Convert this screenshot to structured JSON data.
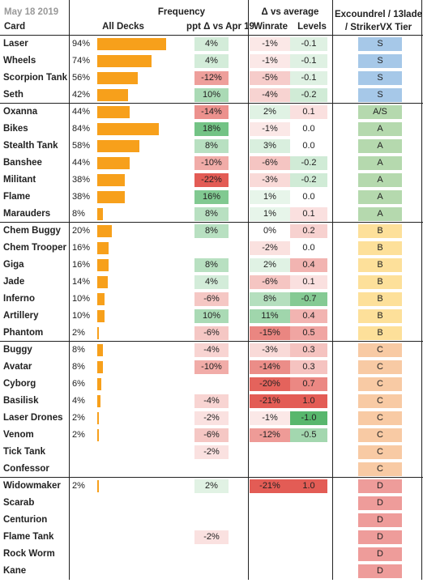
{
  "header": {
    "date": "May 18 2019",
    "frequency": "Frequency",
    "delta_vs_average": "Δ vs average",
    "tier_line1": "Excoundrel / 13lade",
    "tier_line2": "/ StrikerVX Tier",
    "card": "Card",
    "all_decks": "All Decks",
    "ppt_delta": "ppt Δ vs Apr 19",
    "winrate": "Winrate",
    "levels": "Levels"
  },
  "colors": {
    "bar": "#f7a01b",
    "tier_S": "#a6c8e8",
    "tier_AS": "#b5d9ae",
    "tier_A": "#b5d9ae",
    "tier_B": "#fde09a",
    "tier_C": "#f8caa4",
    "tier_D": "#ee9c9a",
    "positive": "#58b76d",
    "negative": "#e35c55"
  },
  "chart_data": {
    "type": "table",
    "columns": [
      "Card",
      "All Decks",
      "ppt Δ vs Apr 19",
      "Winrate",
      "Levels",
      "Excoundrel / 13lade / StrikerVX Tier"
    ],
    "rows": [
      {
        "card": "Laser",
        "freq": 94,
        "freq_label": "94%",
        "ppt": 4,
        "ppt_label": "4%",
        "winrate": -1,
        "winrate_label": "-1%",
        "levels": -0.1,
        "levels_label": "-0.1",
        "tier": "S"
      },
      {
        "card": "Wheels",
        "freq": 74,
        "freq_label": "74%",
        "ppt": 4,
        "ppt_label": "4%",
        "winrate": -1,
        "winrate_label": "-1%",
        "levels": -0.1,
        "levels_label": "-0.1",
        "tier": "S"
      },
      {
        "card": "Scorpion Tank",
        "freq": 56,
        "freq_label": "56%",
        "ppt": -12,
        "ppt_label": "-12%",
        "winrate": -5,
        "winrate_label": "-5%",
        "levels": -0.1,
        "levels_label": "-0.1",
        "tier": "S"
      },
      {
        "card": "Seth",
        "freq": 42,
        "freq_label": "42%",
        "ppt": 10,
        "ppt_label": "10%",
        "winrate": -4,
        "winrate_label": "-4%",
        "levels": -0.2,
        "levels_label": "-0.2",
        "tier": "S"
      },
      {
        "card": "Oxanna",
        "freq": 44,
        "freq_label": "44%",
        "ppt": -14,
        "ppt_label": "-14%",
        "winrate": 2,
        "winrate_label": "2%",
        "levels": 0.1,
        "levels_label": "0.1",
        "tier": "A/S"
      },
      {
        "card": "Bikes",
        "freq": 84,
        "freq_label": "84%",
        "ppt": 18,
        "ppt_label": "18%",
        "winrate": -1,
        "winrate_label": "-1%",
        "levels": 0.0,
        "levels_label": "0.0",
        "tier": "A"
      },
      {
        "card": "Stealth Tank",
        "freq": 58,
        "freq_label": "58%",
        "ppt": 8,
        "ppt_label": "8%",
        "winrate": 3,
        "winrate_label": "3%",
        "levels": 0.0,
        "levels_label": "0.0",
        "tier": "A"
      },
      {
        "card": "Banshee",
        "freq": 44,
        "freq_label": "44%",
        "ppt": -10,
        "ppt_label": "-10%",
        "winrate": -6,
        "winrate_label": "-6%",
        "levels": -0.2,
        "levels_label": "-0.2",
        "tier": "A"
      },
      {
        "card": "Militant",
        "freq": 38,
        "freq_label": "38%",
        "ppt": -22,
        "ppt_label": "-22%",
        "winrate": -3,
        "winrate_label": "-3%",
        "levels": -0.2,
        "levels_label": "-0.2",
        "tier": "A"
      },
      {
        "card": "Flame",
        "freq": 38,
        "freq_label": "38%",
        "ppt": 16,
        "ppt_label": "16%",
        "winrate": 1,
        "winrate_label": "1%",
        "levels": 0.0,
        "levels_label": "0.0",
        "tier": "A"
      },
      {
        "card": "Marauders",
        "freq": 8,
        "freq_label": "8%",
        "ppt": 8,
        "ppt_label": "8%",
        "winrate": 1,
        "winrate_label": "1%",
        "levels": 0.1,
        "levels_label": "0.1",
        "tier": "A"
      },
      {
        "card": "Chem Buggy",
        "freq": 20,
        "freq_label": "20%",
        "ppt": 8,
        "ppt_label": "8%",
        "winrate": 0,
        "winrate_label": "0%",
        "levels": 0.2,
        "levels_label": "0.2",
        "tier": "B"
      },
      {
        "card": "Chem Trooper",
        "freq": 16,
        "freq_label": "16%",
        "ppt": null,
        "ppt_label": "",
        "winrate": -2,
        "winrate_label": "-2%",
        "levels": 0.0,
        "levels_label": "0.0",
        "tier": "B"
      },
      {
        "card": "Giga",
        "freq": 16,
        "freq_label": "16%",
        "ppt": 8,
        "ppt_label": "8%",
        "winrate": 2,
        "winrate_label": "2%",
        "levels": 0.4,
        "levels_label": "0.4",
        "tier": "B"
      },
      {
        "card": "Jade",
        "freq": 14,
        "freq_label": "14%",
        "ppt": 4,
        "ppt_label": "4%",
        "winrate": -6,
        "winrate_label": "-6%",
        "levels": 0.1,
        "levels_label": "0.1",
        "tier": "B"
      },
      {
        "card": "Inferno",
        "freq": 10,
        "freq_label": "10%",
        "ppt": -6,
        "ppt_label": "-6%",
        "winrate": 8,
        "winrate_label": "8%",
        "levels": -0.7,
        "levels_label": "-0.7",
        "tier": "B"
      },
      {
        "card": "Artillery",
        "freq": 10,
        "freq_label": "10%",
        "ppt": 10,
        "ppt_label": "10%",
        "winrate": 11,
        "winrate_label": "11%",
        "levels": 0.4,
        "levels_label": "0.4",
        "tier": "B"
      },
      {
        "card": "Phantom",
        "freq": 2,
        "freq_label": "2%",
        "ppt": -6,
        "ppt_label": "-6%",
        "winrate": -15,
        "winrate_label": "-15%",
        "levels": 0.5,
        "levels_label": "0.5",
        "tier": "B"
      },
      {
        "card": "Buggy",
        "freq": 8,
        "freq_label": "8%",
        "ppt": -4,
        "ppt_label": "-4%",
        "winrate": -3,
        "winrate_label": "-3%",
        "levels": 0.3,
        "levels_label": "0.3",
        "tier": "C"
      },
      {
        "card": "Avatar",
        "freq": 8,
        "freq_label": "8%",
        "ppt": -10,
        "ppt_label": "-10%",
        "winrate": -14,
        "winrate_label": "-14%",
        "levels": 0.3,
        "levels_label": "0.3",
        "tier": "C"
      },
      {
        "card": "Cyborg",
        "freq": 6,
        "freq_label": "6%",
        "ppt": null,
        "ppt_label": "",
        "winrate": -20,
        "winrate_label": "-20%",
        "levels": 0.7,
        "levels_label": "0.7",
        "tier": "C"
      },
      {
        "card": "Basilisk",
        "freq": 4,
        "freq_label": "4%",
        "ppt": -4,
        "ppt_label": "-4%",
        "winrate": -21,
        "winrate_label": "-21%",
        "levels": 1.0,
        "levels_label": "1.0",
        "tier": "C"
      },
      {
        "card": "Laser Drones",
        "freq": 2,
        "freq_label": "2%",
        "ppt": -2,
        "ppt_label": "-2%",
        "winrate": -1,
        "winrate_label": "-1%",
        "levels": -1.0,
        "levels_label": "-1.0",
        "tier": "C"
      },
      {
        "card": "Venom",
        "freq": 2,
        "freq_label": "2%",
        "ppt": -6,
        "ppt_label": "-6%",
        "winrate": -12,
        "winrate_label": "-12%",
        "levels": -0.5,
        "levels_label": "-0.5",
        "tier": "C"
      },
      {
        "card": "Tick Tank",
        "freq": null,
        "freq_label": "",
        "ppt": -2,
        "ppt_label": "-2%",
        "winrate": null,
        "winrate_label": "",
        "levels": null,
        "levels_label": "",
        "tier": "C"
      },
      {
        "card": "Confessor",
        "freq": null,
        "freq_label": "",
        "ppt": null,
        "ppt_label": "",
        "winrate": null,
        "winrate_label": "",
        "levels": null,
        "levels_label": "",
        "tier": "C"
      },
      {
        "card": "Widowmaker",
        "freq": 2,
        "freq_label": "2%",
        "ppt": 2,
        "ppt_label": "2%",
        "winrate": -21,
        "winrate_label": "-21%",
        "levels": 1.0,
        "levels_label": "1.0",
        "tier": "D"
      },
      {
        "card": "Scarab",
        "freq": null,
        "freq_label": "",
        "ppt": null,
        "ppt_label": "",
        "winrate": null,
        "winrate_label": "",
        "levels": null,
        "levels_label": "",
        "tier": "D"
      },
      {
        "card": "Centurion",
        "freq": null,
        "freq_label": "",
        "ppt": null,
        "ppt_label": "",
        "winrate": null,
        "winrate_label": "",
        "levels": null,
        "levels_label": "",
        "tier": "D"
      },
      {
        "card": "Flame Tank",
        "freq": null,
        "freq_label": "",
        "ppt": -2,
        "ppt_label": "-2%",
        "winrate": null,
        "winrate_label": "",
        "levels": null,
        "levels_label": "",
        "tier": "D"
      },
      {
        "card": "Rock Worm",
        "freq": null,
        "freq_label": "",
        "ppt": null,
        "ppt_label": "",
        "winrate": null,
        "winrate_label": "",
        "levels": null,
        "levels_label": "",
        "tier": "D"
      },
      {
        "card": "Kane",
        "freq": null,
        "freq_label": "",
        "ppt": null,
        "ppt_label": "",
        "winrate": null,
        "winrate_label": "",
        "levels": null,
        "levels_label": "",
        "tier": "D"
      }
    ]
  }
}
